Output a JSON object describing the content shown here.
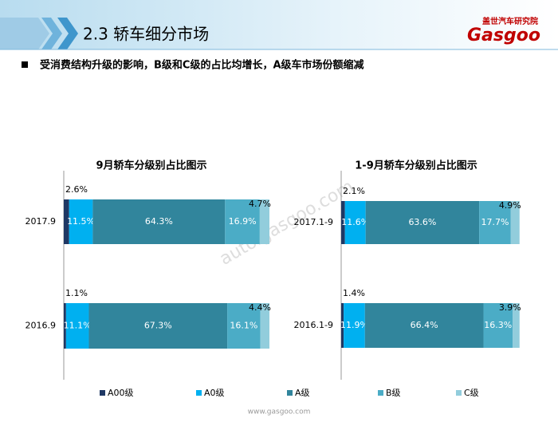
{
  "header": {
    "section": "2.3 轿车细分市场",
    "subtitle": "受消费结构升级的影响，B级和C级的占比均增长，A级车市场份额缩减",
    "logo": "Gasgoo",
    "logo_cn": "盖世汽车研究院",
    "watermark": "auto.gasgoo.com",
    "footer": "www.gasgoo.com"
  },
  "chart_data": [
    {
      "type": "stacked-bar-horizontal",
      "title": "9月轿车分级别占比图示",
      "categories": [
        "2017.9",
        "2016.9"
      ],
      "xlim": [
        0,
        100
      ],
      "series": [
        {
          "name": "A00级",
          "color": "#1f3864",
          "values": [
            2.6,
            1.1
          ],
          "value_labels": [
            "2.6%",
            "1.1%"
          ]
        },
        {
          "name": "A0级",
          "color": "#00b0f0",
          "values": [
            11.5,
            11.1
          ],
          "value_labels": [
            "11.5%",
            "11.1%"
          ]
        },
        {
          "name": "A级",
          "color": "#31859c",
          "values": [
            64.3,
            67.3
          ],
          "value_labels": [
            "64.3%",
            "67.3%"
          ]
        },
        {
          "name": "B级",
          "color": "#4bacc6",
          "values": [
            16.9,
            16.1
          ],
          "value_labels": [
            "16.9%",
            "16.1%"
          ]
        },
        {
          "name": "C级",
          "color": "#92cddc",
          "values": [
            4.7,
            4.4
          ],
          "value_labels": [
            "4.7%",
            "4.4%"
          ]
        }
      ]
    },
    {
      "type": "stacked-bar-horizontal",
      "title": "1-9月轿车分级别占比图示",
      "categories": [
        "2017.1-9",
        "2016.1-9"
      ],
      "xlim": [
        0,
        100
      ],
      "series": [
        {
          "name": "A00级",
          "color": "#1f3864",
          "values": [
            2.1,
            1.4
          ],
          "value_labels": [
            "2.1%",
            "1.4%"
          ]
        },
        {
          "name": "A0级",
          "color": "#00b0f0",
          "values": [
            11.6,
            11.9
          ],
          "value_labels": [
            "11.6%",
            "11.9%"
          ]
        },
        {
          "name": "A级",
          "color": "#31859c",
          "values": [
            63.6,
            66.4
          ],
          "value_labels": [
            "63.6%",
            "66.4%"
          ]
        },
        {
          "name": "B级",
          "color": "#4bacc6",
          "values": [
            17.7,
            16.3
          ],
          "value_labels": [
            "17.7%",
            "16.3%"
          ]
        },
        {
          "name": "C级",
          "color": "#92cddc",
          "values": [
            4.9,
            3.9
          ],
          "value_labels": [
            "4.9%",
            "3.9%"
          ]
        }
      ]
    }
  ]
}
